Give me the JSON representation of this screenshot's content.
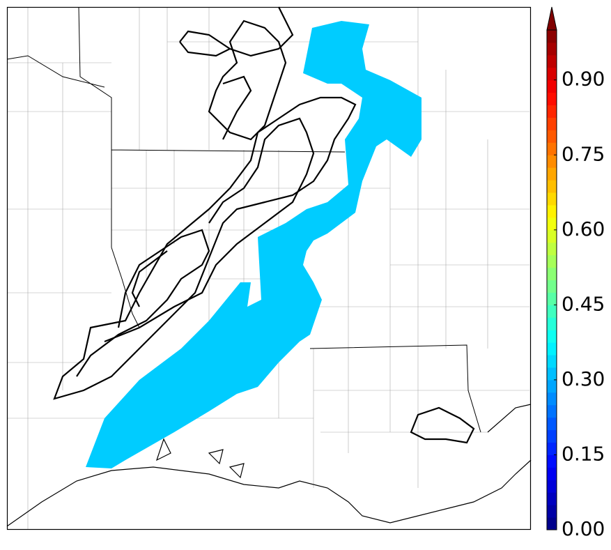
{
  "chart_data": {
    "type": "map",
    "colorbar": {
      "colormap": "jet",
      "lim": [
        0,
        1
      ],
      "extend": "max",
      "ticks": [
        {
          "value": 0,
          "label": "0.00"
        },
        {
          "value": 0.15,
          "label": "0.15"
        },
        {
          "value": 0.3,
          "label": "0.30"
        },
        {
          "value": 0.45,
          "label": "0.45"
        },
        {
          "value": 0.6,
          "label": "0.60"
        },
        {
          "value": 0.75,
          "label": "0.75"
        },
        {
          "value": 0.9,
          "label": "0.90"
        }
      ]
    },
    "field_color": "#00ccff"
  }
}
